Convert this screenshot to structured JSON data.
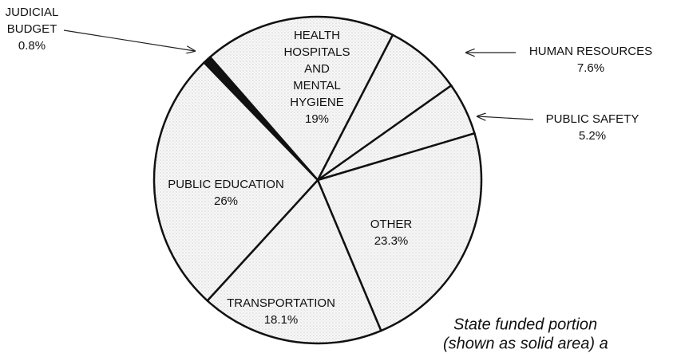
{
  "chart_data": {
    "type": "pie",
    "categories": [
      "JUDICIAL BUDGET",
      "HEALTH HOSPITALS AND MENTAL HYGIENE",
      "HUMAN RESOURCES",
      "PUBLIC SAFETY",
      "OTHER",
      "TRANSPORTATION",
      "PUBLIC EDUCATION"
    ],
    "values": [
      0.8,
      19,
      7.6,
      5.2,
      23.3,
      18.1,
      26
    ],
    "value_labels": [
      "0.8%",
      "19%",
      "7.6%",
      "5.2%",
      "23.3%",
      "18.1%",
      "26%"
    ],
    "colors": [
      "#111111",
      "#eeeeee",
      "#eeeeee",
      "#eeeeee",
      "#eeeeee",
      "#eeeeee",
      "#eeeeee"
    ],
    "caption": [
      "State funded portion",
      "(shown as solid area) a"
    ]
  }
}
